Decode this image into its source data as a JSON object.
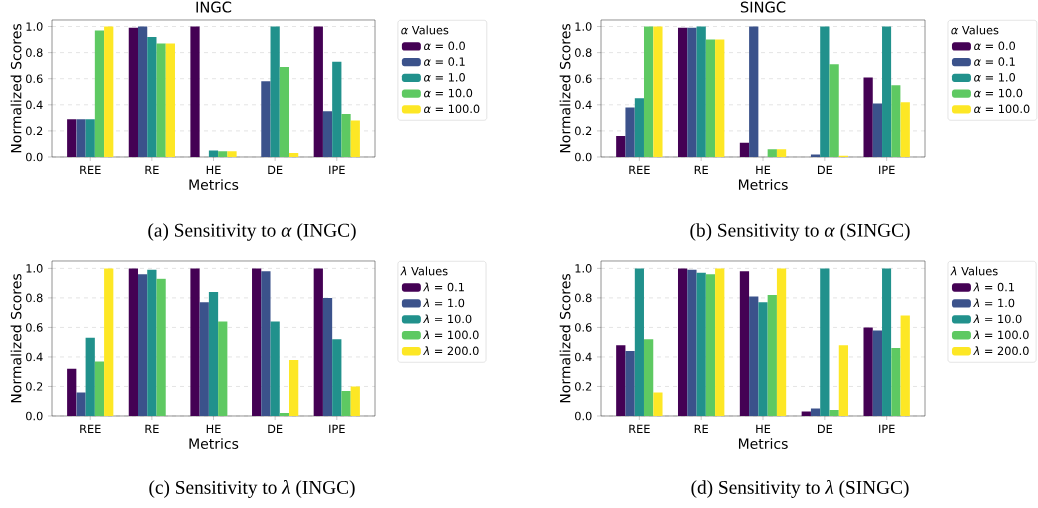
{
  "chart_data": [
    {
      "type": "bar",
      "title": "INGC",
      "xlabel": "Metrics",
      "ylabel": "Normalized Scores",
      "categories": [
        "REE",
        "RE",
        "HE",
        "DE",
        "IPE"
      ],
      "series": [
        {
          "name": "*α* = 0.0",
          "color": "#440154",
          "values": [
            0.29,
            0.99,
            1.0,
            0,
            1.0
          ]
        },
        {
          "name": "*α* = 0.1",
          "color": "#3b528b",
          "values": [
            0.29,
            1.0,
            0,
            0.58,
            0.35
          ]
        },
        {
          "name": "*α* = 1.0",
          "color": "#21918c",
          "values": [
            0.29,
            0.92,
            0.05,
            1.0,
            0.73
          ]
        },
        {
          "name": "*α* = 10.0",
          "color": "#5ec962",
          "values": [
            0.97,
            0.87,
            0.045,
            0.69,
            0.33
          ]
        },
        {
          "name": "*α* = 100.0",
          "color": "#fde725",
          "values": [
            1.0,
            0.87,
            0.045,
            0.03,
            0.28
          ]
        }
      ],
      "ylim": [
        0,
        1.05
      ],
      "yticks": [
        {
          "value": 0,
          "label": "0.0"
        },
        {
          "value": 0.2,
          "label": "0.2"
        },
        {
          "value": 0.4,
          "label": "0.4"
        },
        {
          "value": 0.6,
          "label": "0.6"
        },
        {
          "value": 0.8,
          "label": "0.8"
        },
        {
          "value": 1,
          "label": "1.0"
        }
      ],
      "grid": "y",
      "legend": "right",
      "legend_title": "*α* Values",
      "annotations": [
        "(a) Sensitivity to *α* (INGC)"
      ]
    },
    {
      "type": "bar",
      "title": "SINGC",
      "xlabel": "Metrics",
      "ylabel": "Normalized Scores",
      "categories": [
        "REE",
        "RE",
        "HE",
        "DE",
        "IPE"
      ],
      "series": [
        {
          "name": "*α* = 0.0",
          "color": "#440154",
          "values": [
            0.16,
            0.99,
            0.11,
            0,
            0.61
          ]
        },
        {
          "name": "*α* = 0.1",
          "color": "#3b528b",
          "values": [
            0.38,
            0.99,
            1.0,
            0.02,
            0.41
          ]
        },
        {
          "name": "*α* = 1.0",
          "color": "#21918c",
          "values": [
            0.45,
            1.0,
            0,
            1.0,
            1.0
          ]
        },
        {
          "name": "*α* = 10.0",
          "color": "#5ec962",
          "values": [
            1.0,
            0.9,
            0.06,
            0.71,
            0.55
          ]
        },
        {
          "name": "*α* = 100.0",
          "color": "#fde725",
          "values": [
            1.0,
            0.9,
            0.06,
            0.01,
            0.42
          ]
        }
      ],
      "ylim": [
        0,
        1.05
      ],
      "yticks": [
        {
          "value": 0,
          "label": "0.0"
        },
        {
          "value": 0.2,
          "label": "0.2"
        },
        {
          "value": 0.4,
          "label": "0.4"
        },
        {
          "value": 0.6,
          "label": "0.6"
        },
        {
          "value": 0.8,
          "label": "0.8"
        },
        {
          "value": 1,
          "label": "1.0"
        }
      ],
      "grid": "y",
      "legend": "right",
      "legend_title": "*α* Values",
      "annotations": [
        "(b) Sensitivity to *α* (SINGC)"
      ]
    },
    {
      "type": "bar",
      "xlabel": "Metrics",
      "ylabel": "Normalized Scores",
      "categories": [
        "REE",
        "RE",
        "HE",
        "DE",
        "IPE"
      ],
      "series": [
        {
          "name": "*λ* = 0.1",
          "color": "#440154",
          "values": [
            0.32,
            1.0,
            1.0,
            1.0,
            1.0
          ]
        },
        {
          "name": "*λ* = 1.0",
          "color": "#3b528b",
          "values": [
            0.16,
            0.96,
            0.77,
            0.98,
            0.8
          ]
        },
        {
          "name": "*λ* = 10.0",
          "color": "#21918c",
          "values": [
            0.53,
            0.99,
            0.84,
            0.64,
            0.52
          ]
        },
        {
          "name": "*λ* = 100.0",
          "color": "#5ec962",
          "values": [
            0.37,
            0.93,
            0.64,
            0.02,
            0.17
          ]
        },
        {
          "name": "*λ* = 200.0",
          "color": "#fde725",
          "values": [
            1.0,
            0,
            0,
            0.38,
            0.2
          ]
        }
      ],
      "ylim": [
        0,
        1.05
      ],
      "yticks": [
        {
          "value": 0,
          "label": "0.0"
        },
        {
          "value": 0.2,
          "label": "0.2"
        },
        {
          "value": 0.4,
          "label": "0.4"
        },
        {
          "value": 0.6,
          "label": "0.6"
        },
        {
          "value": 0.8,
          "label": "0.8"
        },
        {
          "value": 1,
          "label": "1.0"
        }
      ],
      "grid": "y",
      "legend": "right",
      "legend_title": "*λ* Values",
      "annotations": [
        "(c) Sensitivity to *λ* (INGC)"
      ]
    },
    {
      "type": "bar",
      "xlabel": "Metrics",
      "ylabel": "Normalized Scores",
      "categories": [
        "REE",
        "RE",
        "HE",
        "DE",
        "IPE"
      ],
      "series": [
        {
          "name": "*λ* = 0.1",
          "color": "#440154",
          "values": [
            0.48,
            1.0,
            0.98,
            0.03,
            0.6
          ]
        },
        {
          "name": "*λ* = 1.0",
          "color": "#3b528b",
          "values": [
            0.44,
            0.99,
            0.81,
            0.05,
            0.58
          ]
        },
        {
          "name": "*λ* = 10.0",
          "color": "#21918c",
          "values": [
            1.0,
            0.97,
            0.77,
            1.0,
            1.0
          ]
        },
        {
          "name": "*λ* = 100.0",
          "color": "#5ec962",
          "values": [
            0.52,
            0.96,
            0.82,
            0.04,
            0.46
          ]
        },
        {
          "name": "*λ* = 200.0",
          "color": "#fde725",
          "values": [
            0.16,
            1.0,
            1.0,
            0.48,
            0.68
          ]
        }
      ],
      "ylim": [
        0,
        1.05
      ],
      "yticks": [
        {
          "value": 0,
          "label": "0.0"
        },
        {
          "value": 0.2,
          "label": "0.2"
        },
        {
          "value": 0.4,
          "label": "0.4"
        },
        {
          "value": 0.6,
          "label": "0.6"
        },
        {
          "value": 0.8,
          "label": "0.8"
        },
        {
          "value": 1,
          "label": "1.0"
        }
      ],
      "grid": "y",
      "legend": "right",
      "legend_title": "*λ* Values",
      "annotations": [
        "(d) Sensitivity to *λ* (SINGC)"
      ]
    }
  ]
}
